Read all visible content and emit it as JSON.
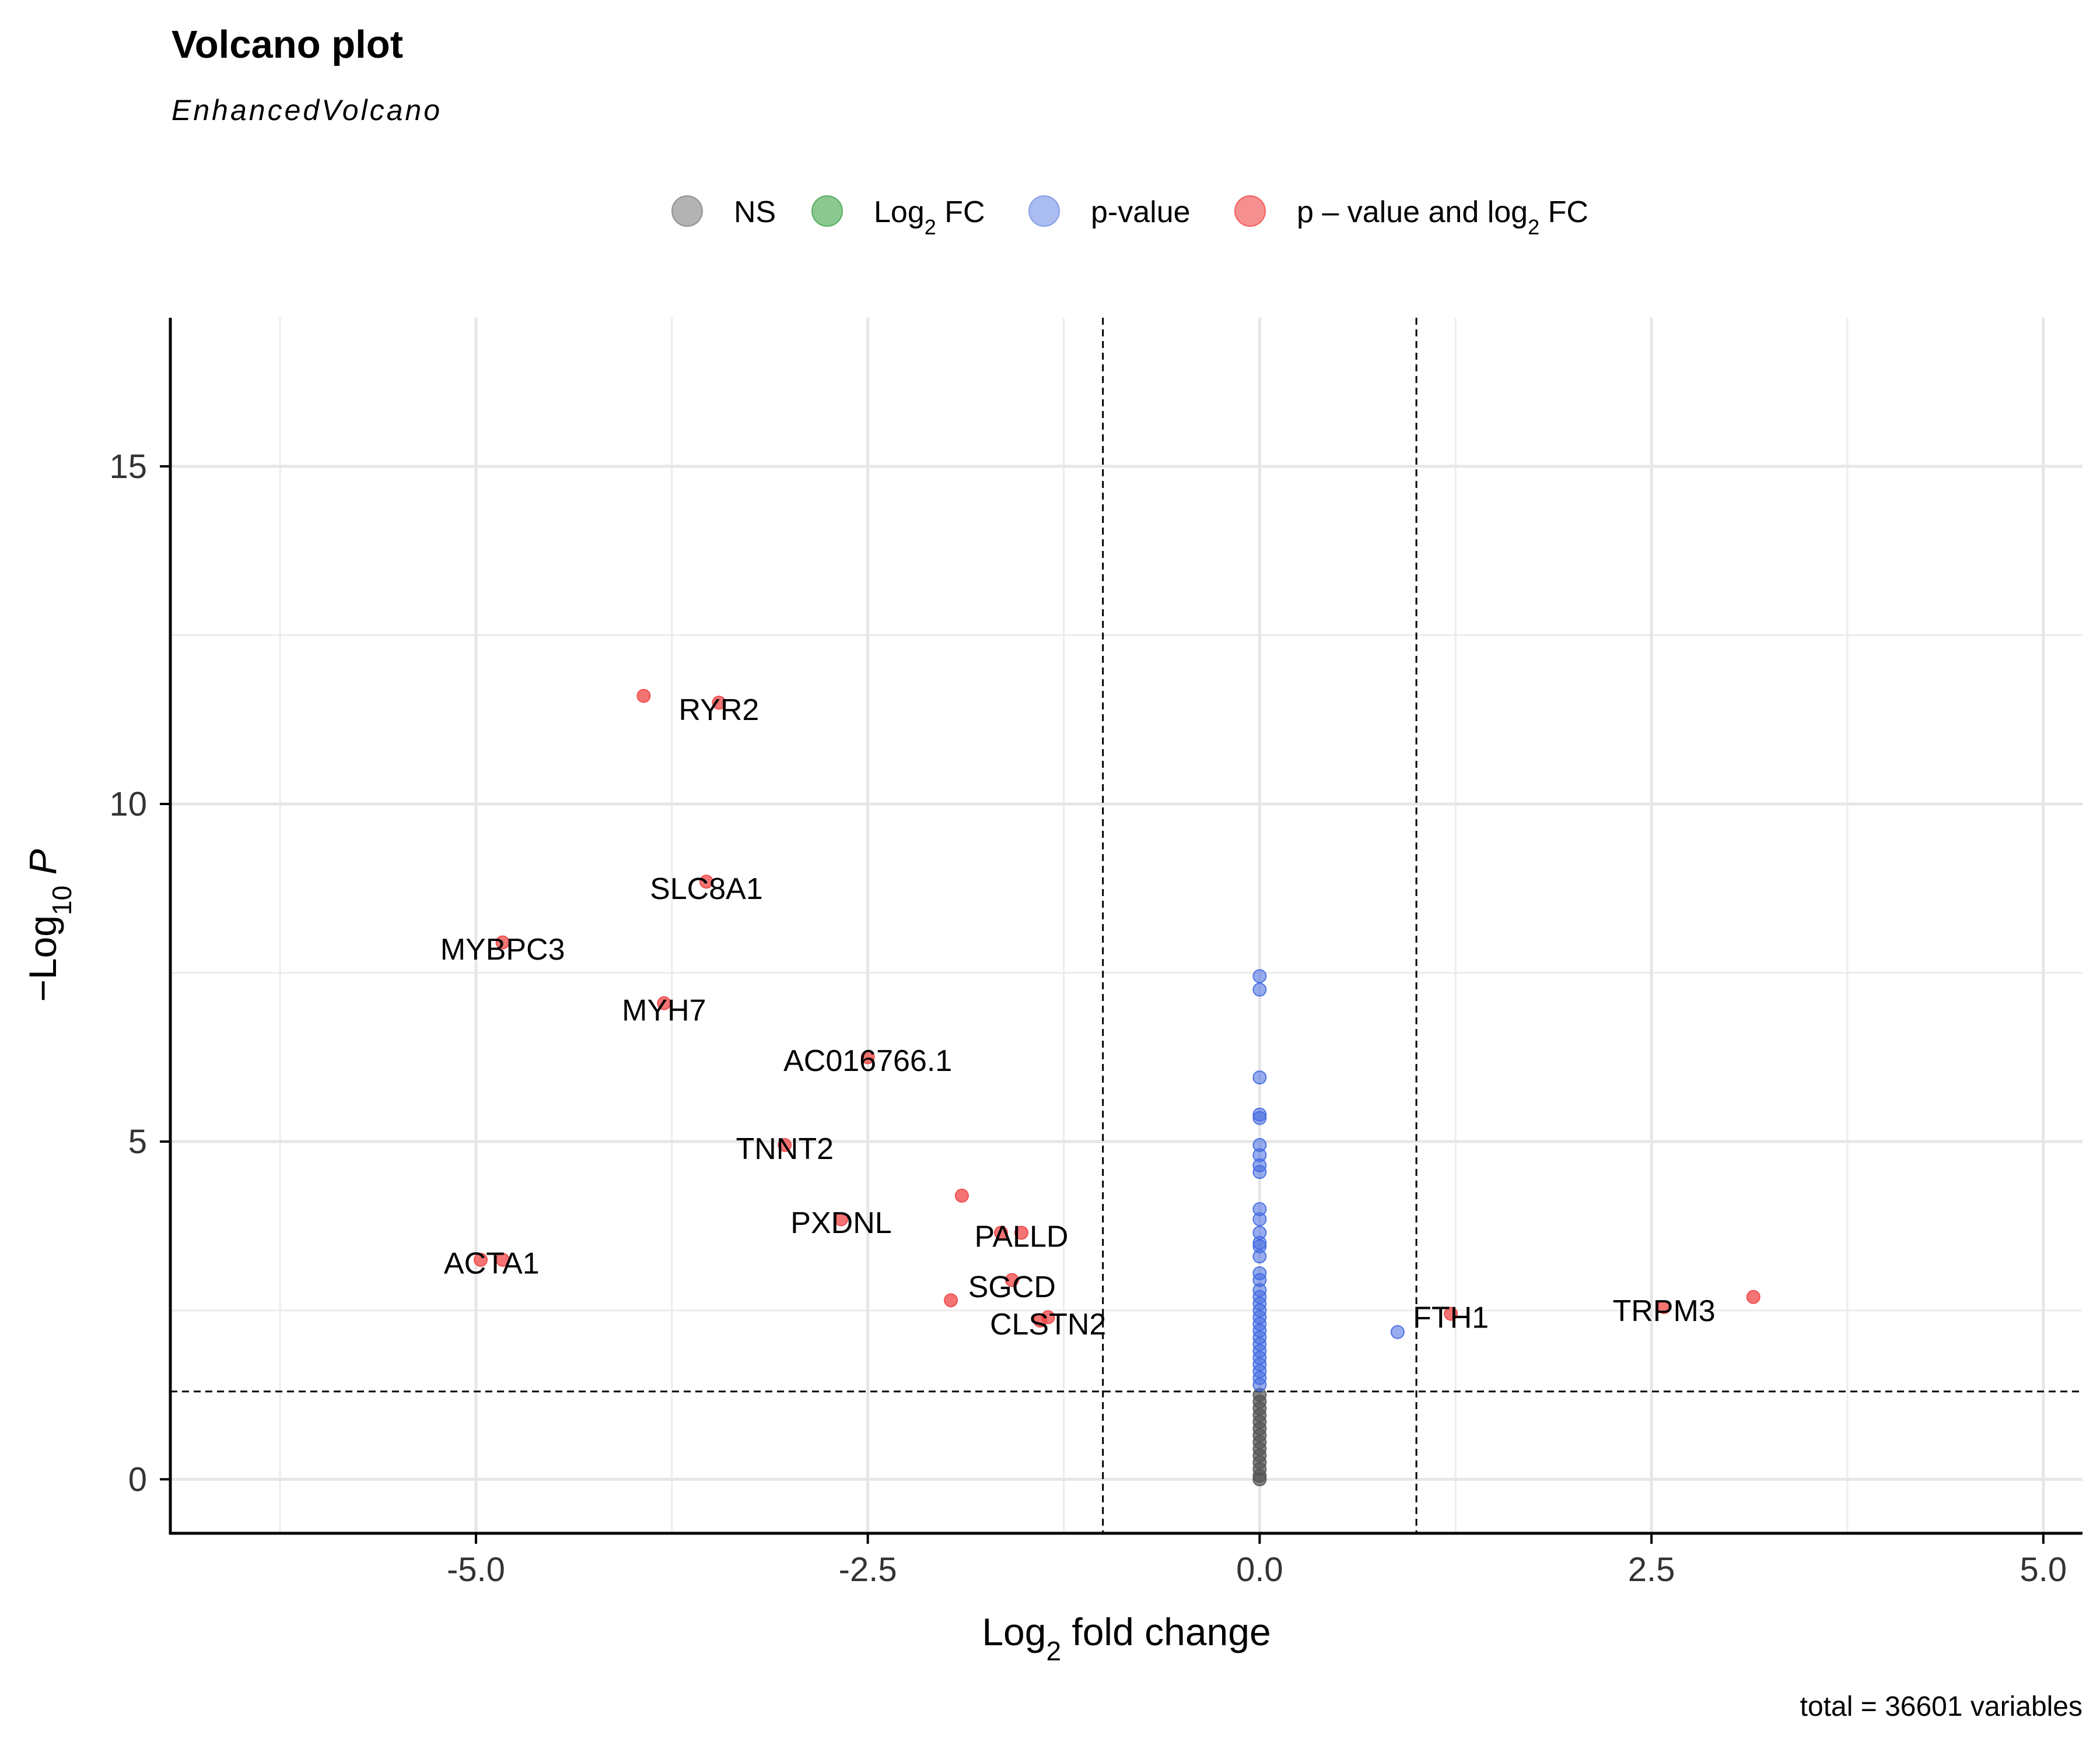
{
  "title": "Volcano plot",
  "subtitle": "EnhancedVolcano",
  "caption": "total = 36601 variables",
  "legend": {
    "items": [
      {
        "key": "NS",
        "color": "#808080"
      },
      {
        "key": "Log2 FC",
        "color": "#3DA447"
      },
      {
        "key": "p-value",
        "color": "#7290E6"
      },
      {
        "key": "p – value and log2 FC",
        "color": "#F04545"
      }
    ]
  },
  "colors": {
    "ns": "#555555",
    "fc": "#3DA447",
    "p": "#4169E1",
    "both": "#F04545"
  },
  "chart_data": {
    "type": "scatter",
    "title": "Volcano plot",
    "subtitle": "EnhancedVolcano",
    "xlabel": "Log2 fold change",
    "ylabel": "−Log10 P",
    "xlim": [
      -6.95,
      5.25
    ],
    "ylim": [
      -0.8,
      17.2
    ],
    "xticks": [
      -5.0,
      -2.5,
      0.0,
      2.5,
      5.0
    ],
    "xtick_labels": [
      "-5.0",
      "-2.5",
      "0.0",
      "2.5",
      "5.0"
    ],
    "yticks": [
      0,
      5,
      10,
      15
    ],
    "ytick_labels": [
      "0",
      "5",
      "10",
      "15"
    ],
    "cutoffs": {
      "log2fc": [
        -1,
        1
      ],
      "neg_log10_p": 1.3
    },
    "grid": true,
    "legend_position": "top",
    "series": [
      {
        "name": "p – value and log2 FC",
        "points": [
          {
            "x": -3.93,
            "y": 11.6
          },
          {
            "x": -3.45,
            "y": 11.5
          },
          {
            "x": -3.53,
            "y": 8.85
          },
          {
            "x": -4.83,
            "y": 7.95
          },
          {
            "x": -3.8,
            "y": 7.05
          },
          {
            "x": -2.5,
            "y": 6.25
          },
          {
            "x": -3.03,
            "y": 4.95
          },
          {
            "x": -1.9,
            "y": 4.2
          },
          {
            "x": -2.67,
            "y": 3.85
          },
          {
            "x": -1.65,
            "y": 3.65
          },
          {
            "x": -1.52,
            "y": 3.65
          },
          {
            "x": -4.97,
            "y": 3.25
          },
          {
            "x": -4.83,
            "y": 3.25
          },
          {
            "x": -1.58,
            "y": 2.95
          },
          {
            "x": -1.97,
            "y": 2.65
          },
          {
            "x": -1.4,
            "y": 2.35
          },
          {
            "x": -1.35,
            "y": 2.4
          },
          {
            "x": 1.22,
            "y": 2.45
          },
          {
            "x": 2.58,
            "y": 2.55
          },
          {
            "x": 3.15,
            "y": 2.7
          }
        ]
      },
      {
        "name": "p-value",
        "points": [
          {
            "x": 0.0,
            "y": 7.45
          },
          {
            "x": 0.0,
            "y": 7.25
          },
          {
            "x": 0.0,
            "y": 5.95
          },
          {
            "x": 0.0,
            "y": 5.4
          },
          {
            "x": 0.0,
            "y": 5.35
          },
          {
            "x": 0.0,
            "y": 4.95
          },
          {
            "x": 0.0,
            "y": 4.8
          },
          {
            "x": 0.0,
            "y": 4.65
          },
          {
            "x": 0.0,
            "y": 4.55
          },
          {
            "x": 0.0,
            "y": 4.0
          },
          {
            "x": 0.0,
            "y": 3.85
          },
          {
            "x": 0.0,
            "y": 3.65
          },
          {
            "x": 0.0,
            "y": 3.5
          },
          {
            "x": 0.0,
            "y": 3.45
          },
          {
            "x": 0.0,
            "y": 3.3
          },
          {
            "x": 0.0,
            "y": 3.05
          },
          {
            "x": 0.0,
            "y": 2.95
          },
          {
            "x": 0.0,
            "y": 2.8
          },
          {
            "x": 0.0,
            "y": 2.7
          },
          {
            "x": 0.0,
            "y": 2.6
          },
          {
            "x": 0.0,
            "y": 2.5
          },
          {
            "x": 0.0,
            "y": 2.4
          },
          {
            "x": 0.0,
            "y": 2.3
          },
          {
            "x": 0.0,
            "y": 2.2
          },
          {
            "x": 0.0,
            "y": 2.1
          },
          {
            "x": 0.0,
            "y": 2.0
          },
          {
            "x": 0.0,
            "y": 1.9
          },
          {
            "x": 0.0,
            "y": 1.8
          },
          {
            "x": 0.0,
            "y": 1.7
          },
          {
            "x": 0.0,
            "y": 1.6
          },
          {
            "x": 0.0,
            "y": 1.5
          },
          {
            "x": 0.0,
            "y": 1.4
          },
          {
            "x": 0.88,
            "y": 2.18
          }
        ]
      },
      {
        "name": "NS",
        "points": [
          {
            "x": 0.0,
            "y": 1.25
          },
          {
            "x": 0.0,
            "y": 1.15
          },
          {
            "x": 0.0,
            "y": 1.05
          },
          {
            "x": 0.0,
            "y": 0.95
          },
          {
            "x": 0.0,
            "y": 0.85
          },
          {
            "x": 0.0,
            "y": 0.75
          },
          {
            "x": 0.0,
            "y": 0.65
          },
          {
            "x": 0.0,
            "y": 0.55
          },
          {
            "x": 0.0,
            "y": 0.45
          },
          {
            "x": 0.0,
            "y": 0.35
          },
          {
            "x": 0.0,
            "y": 0.25
          },
          {
            "x": 0.0,
            "y": 0.15
          },
          {
            "x": 0.0,
            "y": 0.05
          },
          {
            "x": 0.0,
            "y": 0.0
          }
        ]
      }
    ],
    "labels": [
      {
        "text": "RYR2",
        "x": -3.45,
        "y": 11.4
      },
      {
        "text": "SLC8A1",
        "x": -3.53,
        "y": 8.75
      },
      {
        "text": "MYBPC3",
        "x": -4.83,
        "y": 7.85
      },
      {
        "text": "MYH7",
        "x": -3.8,
        "y": 6.95
      },
      {
        "text": "AC016766.1",
        "x": -2.5,
        "y": 6.2
      },
      {
        "text": "TNNT2",
        "x": -3.03,
        "y": 4.9
      },
      {
        "text": "PXDNL",
        "x": -2.67,
        "y": 3.8
      },
      {
        "text": "PALLD",
        "x": -1.52,
        "y": 3.6
      },
      {
        "text": "ACTA1",
        "x": -4.9,
        "y": 3.2
      },
      {
        "text": "SGCD",
        "x": -1.58,
        "y": 2.85
      },
      {
        "text": "CLSTN2",
        "x": -1.35,
        "y": 2.3
      },
      {
        "text": "FTH1",
        "x": 1.22,
        "y": 2.4
      },
      {
        "text": "TRPM3",
        "x": 2.58,
        "y": 2.5
      }
    ]
  }
}
